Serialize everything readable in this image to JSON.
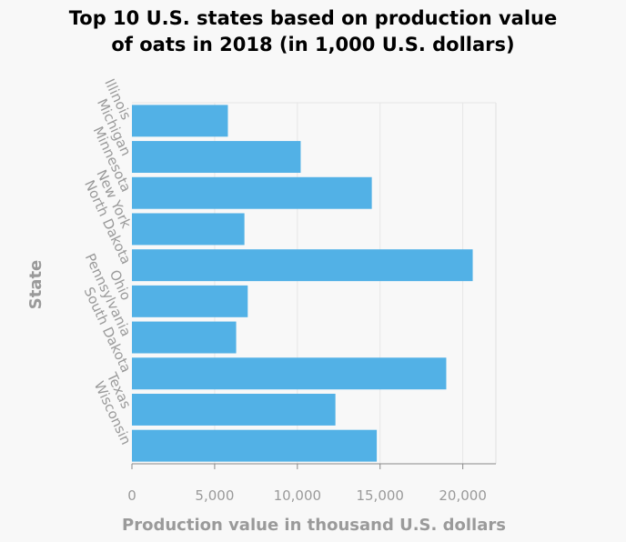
{
  "chart_data": {
    "type": "bar",
    "orientation": "horizontal",
    "title_line1": "Top 10 U.S. states based on production value",
    "title_line2": "of oats in 2018 (in 1,000 U.S. dollars)",
    "xlabel": "Production value in thousand U.S. dollars",
    "ylabel": "State",
    "categories": [
      "Illinois",
      "Michigan",
      "Minnesota",
      "New York",
      "North Dakota",
      "Ohio",
      "Pennsylvania",
      "South Dakota",
      "Texas",
      "Wisconsin"
    ],
    "values": [
      5800,
      10200,
      14500,
      6800,
      20600,
      7000,
      6300,
      19000,
      12300,
      14800
    ],
    "xlim": [
      0,
      22000
    ],
    "xticks": [
      0,
      5000,
      10000,
      15000,
      20000
    ],
    "xtick_labels": [
      "0",
      "5,000",
      "10,000",
      "15,000",
      "20,000"
    ],
    "bar_color": "#52b1e6",
    "grid": true
  }
}
